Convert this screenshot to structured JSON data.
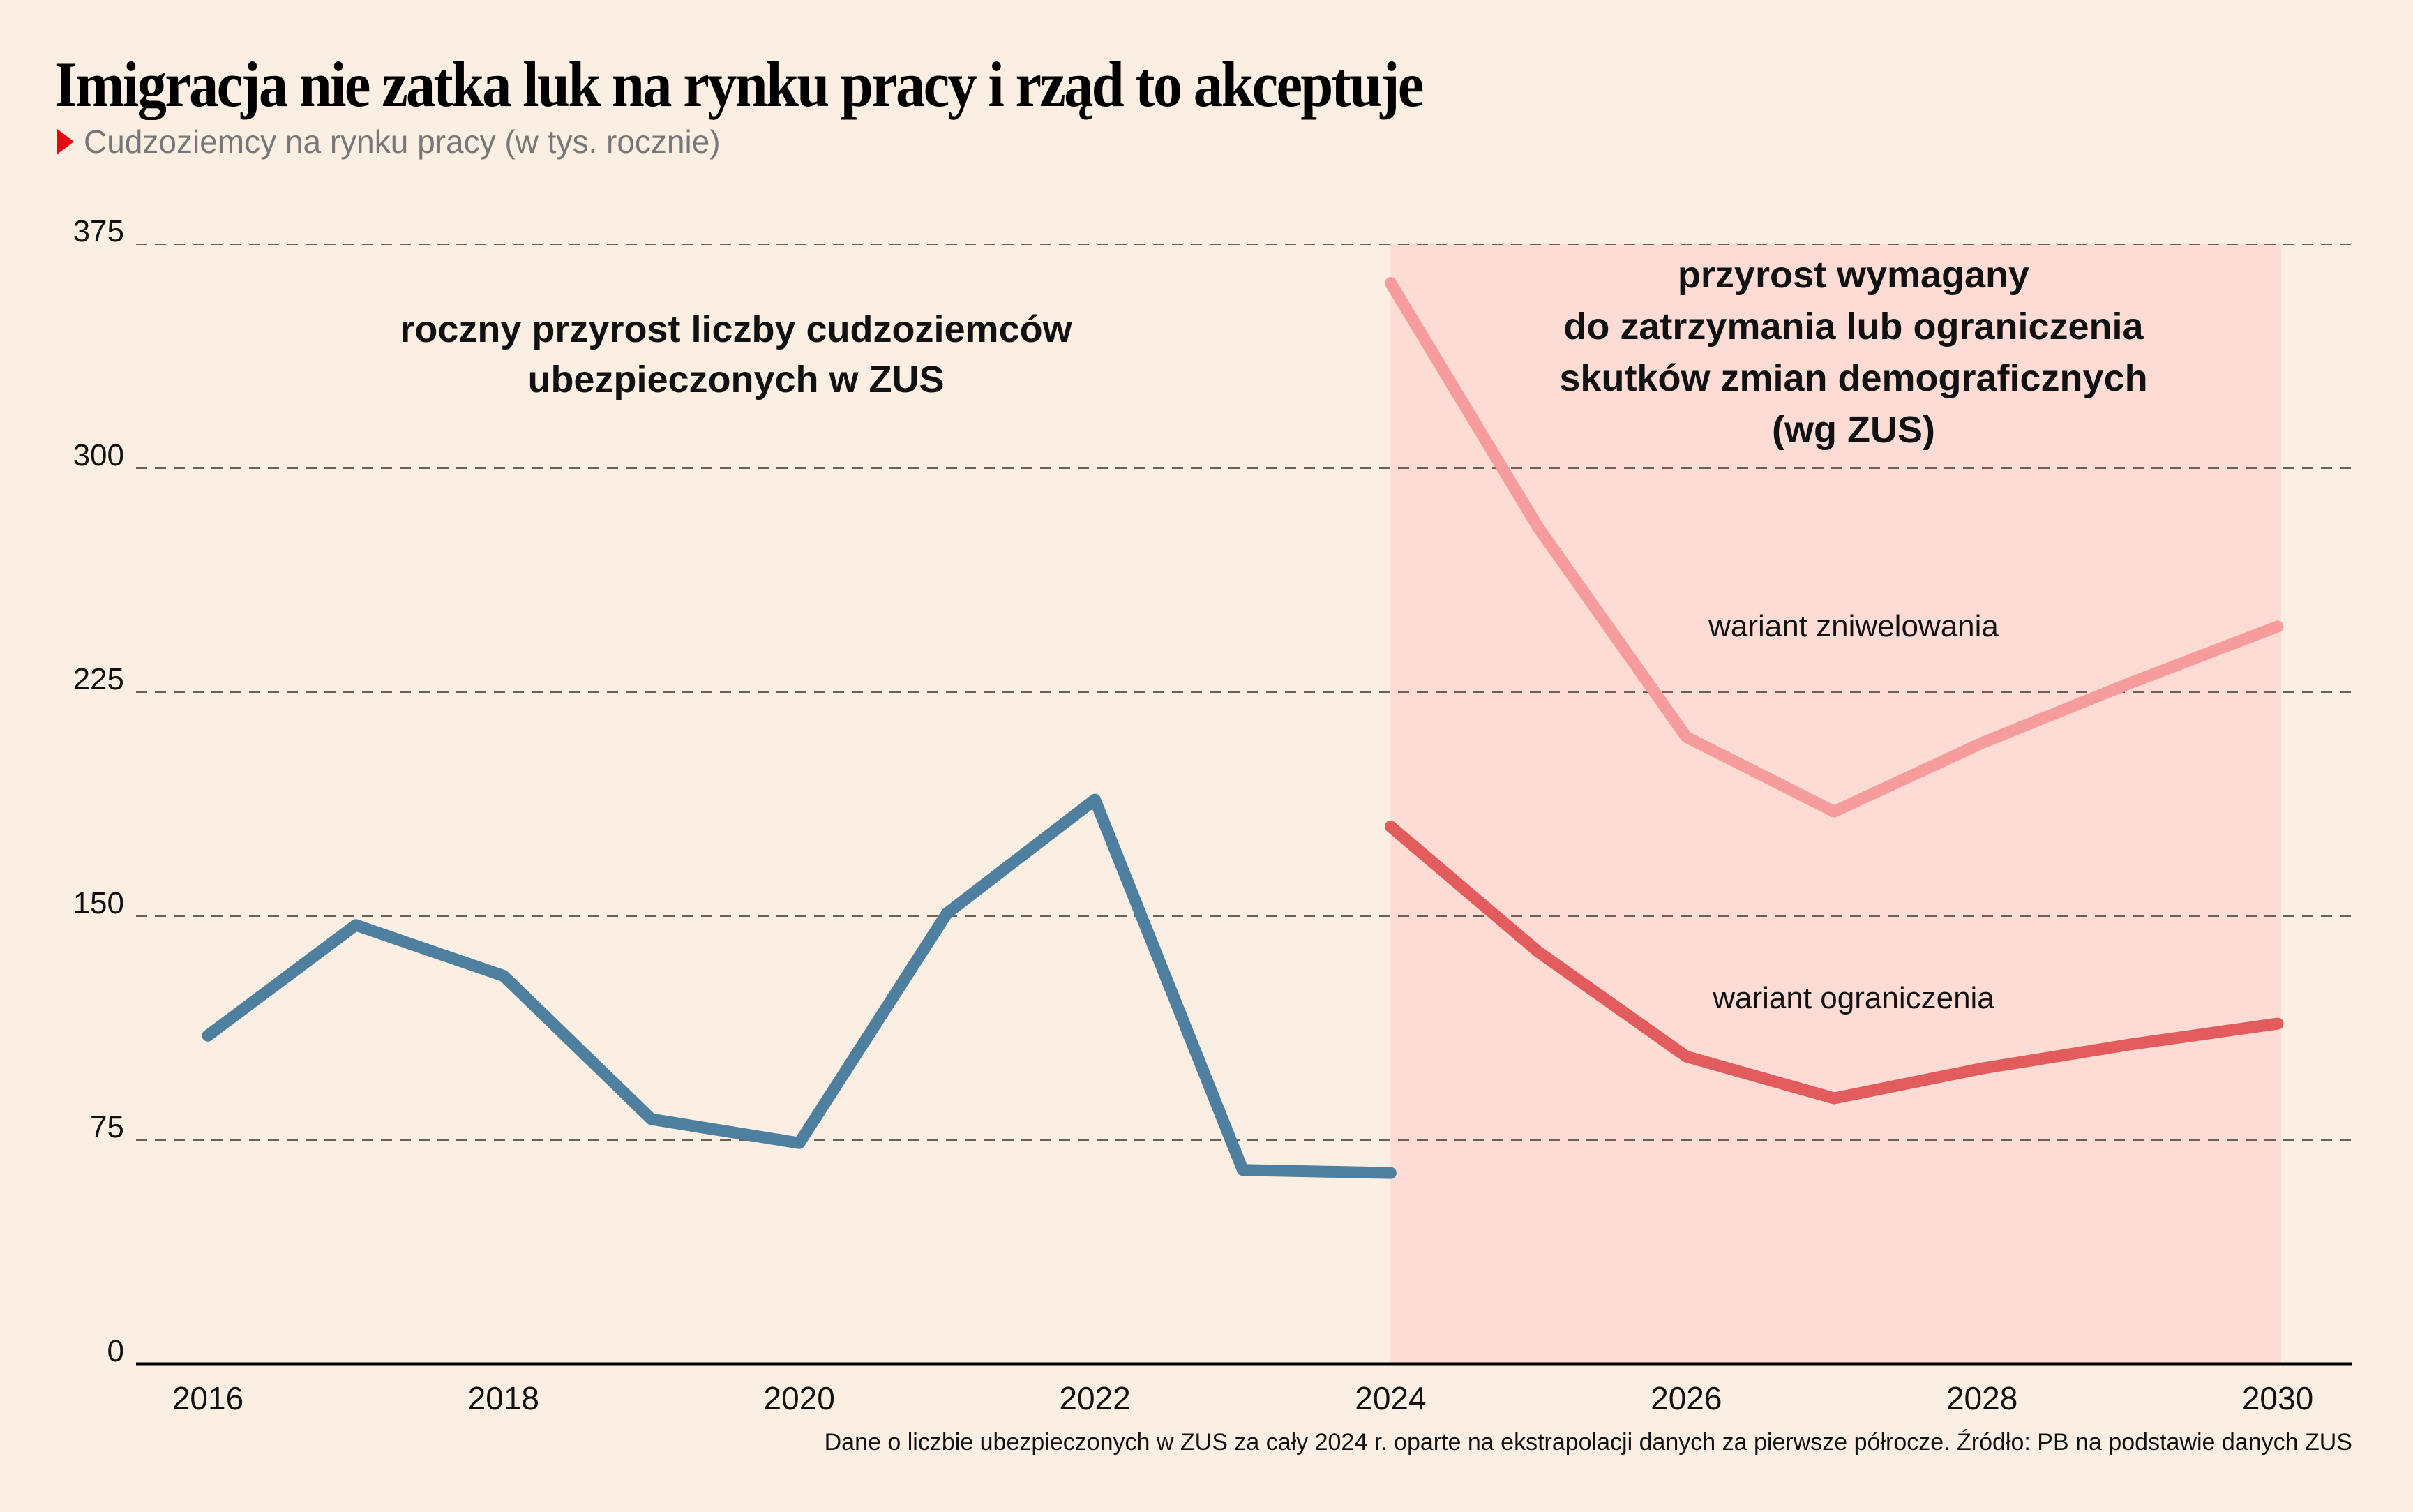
{
  "title": "Imigracja nie zatka luk na rynku pracy i rząd to akceptuje",
  "subtitle": "Cudzoziemcy na rynku pracy (w tys. rocznie)",
  "footnote": "Dane o liczbie ubezpieczonych w ZUS za cały 2024 r. oparte na ekstrapolacji danych za pierwsze półrocze. Źródło: PB na podstawie danych ZUS",
  "colors": {
    "background": "#fbeee2",
    "band": "#fddcd5",
    "actual": "#4e7f9e",
    "zniwelowania": "#f79c9c",
    "ograniczenia": "#e25c5e",
    "accent": "#e30613"
  },
  "chart_data": {
    "type": "line",
    "title": "Imigracja nie zatka luk na rynku pracy i rząd to akceptuje",
    "ylabel": "Cudzoziemcy na rynku pracy (w tys. rocznie)",
    "xlabel": "",
    "ylim": [
      0,
      375
    ],
    "xlim": [
      2016,
      2030
    ],
    "yticks": [
      "0",
      "75",
      "150",
      "225",
      "300",
      "375"
    ],
    "ytick_values": [
      0,
      75,
      150,
      225,
      300,
      375
    ],
    "xticks": [
      "2016",
      "2018",
      "2020",
      "2022",
      "2024",
      "2026",
      "2028",
      "2030"
    ],
    "xtick_values": [
      2016,
      2018,
      2020,
      2022,
      2024,
      2026,
      2028,
      2030
    ],
    "grid": true,
    "shaded_region": {
      "x_from": 2024,
      "x_to": 2030
    },
    "series": [
      {
        "name": "roczny przyrost liczby cudzoziemców ubezpieczonych w ZUS",
        "x": [
          2016,
          2017,
          2018,
          2019,
          2020,
          2021,
          2022,
          2023,
          2024
        ],
        "values": [
          110,
          147,
          130,
          82,
          74,
          151,
          189,
          65,
          64
        ]
      },
      {
        "name": "wariant zniwelowania",
        "x": [
          2024,
          2025,
          2026,
          2027,
          2028,
          2029,
          2030
        ],
        "values": [
          362,
          280,
          210,
          185,
          208,
          228,
          247
        ]
      },
      {
        "name": "wariant ograniczenia",
        "x": [
          2024,
          2025,
          2026,
          2027,
          2028,
          2029,
          2030
        ],
        "values": [
          180,
          138,
          103,
          89,
          99,
          107,
          114
        ]
      }
    ],
    "annotations": {
      "left": [
        "roczny przyrost liczby cudzoziemców",
        "ubezpieczonych w ZUS"
      ],
      "right": [
        "przyrost wymagany",
        "do zatrzymania lub ograniczenia",
        "skutków zmian demograficznych",
        "(wg ZUS)"
      ],
      "zniwelowania_label": "wariant zniwelowania",
      "ograniczenia_label": "wariant ograniczenia"
    }
  }
}
